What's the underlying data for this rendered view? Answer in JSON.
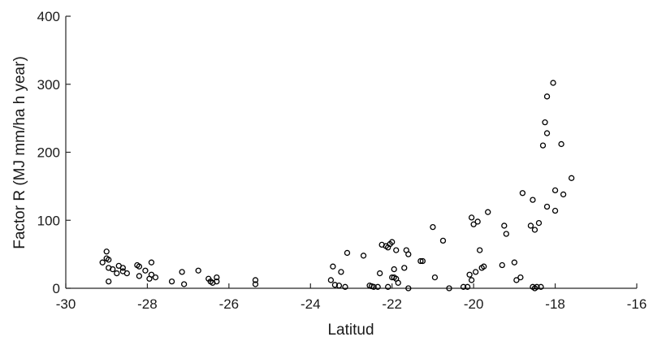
{
  "chart_data": {
    "type": "scatter",
    "xlabel": "Latitud",
    "ylabel": "Factor R (MJ mm/ha h year)",
    "xlim": [
      -30,
      -16
    ],
    "ylim": [
      0,
      400
    ],
    "xticks": [
      "-30",
      "-28",
      "-26",
      "-24",
      "-22",
      "-20",
      "-18",
      "-16"
    ],
    "yticks": [
      "0",
      "100",
      "200",
      "300",
      "400"
    ],
    "grid": false,
    "legend": "none",
    "marker": "open-circle",
    "marker_color": "#000000",
    "points": [
      [
        -29.1,
        38
      ],
      [
        -29.0,
        54
      ],
      [
        -29.0,
        44
      ],
      [
        -28.95,
        42
      ],
      [
        -28.95,
        30
      ],
      [
        -28.95,
        10
      ],
      [
        -28.85,
        28
      ],
      [
        -28.75,
        22
      ],
      [
        -28.7,
        33
      ],
      [
        -28.6,
        30
      ],
      [
        -28.6,
        25
      ],
      [
        -28.5,
        22
      ],
      [
        -28.25,
        34
      ],
      [
        -28.2,
        32
      ],
      [
        -28.2,
        18
      ],
      [
        -28.05,
        26
      ],
      [
        -27.95,
        14
      ],
      [
        -27.9,
        38
      ],
      [
        -27.9,
        20
      ],
      [
        -27.8,
        16
      ],
      [
        -27.4,
        10
      ],
      [
        -27.15,
        24
      ],
      [
        -27.1,
        6
      ],
      [
        -26.75,
        26
      ],
      [
        -26.5,
        14
      ],
      [
        -26.45,
        10
      ],
      [
        -26.4,
        8
      ],
      [
        -26.3,
        16
      ],
      [
        -26.3,
        10
      ],
      [
        -25.35,
        12
      ],
      [
        -25.35,
        6
      ],
      [
        -23.5,
        12
      ],
      [
        -23.45,
        32
      ],
      [
        -23.4,
        5
      ],
      [
        -23.3,
        4
      ],
      [
        -23.25,
        24
      ],
      [
        -23.15,
        2
      ],
      [
        -23.1,
        52
      ],
      [
        -22.7,
        48
      ],
      [
        -22.55,
        4
      ],
      [
        -22.5,
        3
      ],
      [
        -22.45,
        2
      ],
      [
        -22.35,
        2
      ],
      [
        -22.3,
        22
      ],
      [
        -22.25,
        64
      ],
      [
        -22.15,
        62
      ],
      [
        -22.1,
        60
      ],
      [
        -22.05,
        65
      ],
      [
        -22.0,
        68
      ],
      [
        -22.0,
        16
      ],
      [
        -21.95,
        28
      ],
      [
        -21.95,
        16
      ],
      [
        -21.9,
        14
      ],
      [
        -21.9,
        56
      ],
      [
        -21.85,
        8
      ],
      [
        -22.1,
        2
      ],
      [
        -21.7,
        30
      ],
      [
        -21.65,
        56
      ],
      [
        -21.6,
        50
      ],
      [
        -21.6,
        0
      ],
      [
        -21.3,
        40
      ],
      [
        -21.25,
        40
      ],
      [
        -21.0,
        90
      ],
      [
        -20.95,
        16
      ],
      [
        -20.75,
        70
      ],
      [
        -20.6,
        0
      ],
      [
        -20.25,
        2
      ],
      [
        -20.15,
        2
      ],
      [
        -20.1,
        20
      ],
      [
        -20.05,
        104
      ],
      [
        -20.05,
        12
      ],
      [
        -20.0,
        94
      ],
      [
        -19.95,
        24
      ],
      [
        -19.9,
        98
      ],
      [
        -19.85,
        56
      ],
      [
        -19.8,
        30
      ],
      [
        -19.75,
        32
      ],
      [
        -19.65,
        112
      ],
      [
        -19.3,
        34
      ],
      [
        -19.25,
        92
      ],
      [
        -19.2,
        80
      ],
      [
        -19.0,
        38
      ],
      [
        -18.95,
        12
      ],
      [
        -18.85,
        16
      ],
      [
        -18.8,
        140
      ],
      [
        -18.6,
        92
      ],
      [
        -18.55,
        130
      ],
      [
        -18.55,
        2
      ],
      [
        -18.5,
        86
      ],
      [
        -18.5,
        0
      ],
      [
        -18.45,
        2
      ],
      [
        -18.4,
        96
      ],
      [
        -18.35,
        2
      ],
      [
        -18.3,
        210
      ],
      [
        -18.25,
        244
      ],
      [
        -18.2,
        282
      ],
      [
        -18.2,
        228
      ],
      [
        -18.2,
        120
      ],
      [
        -18.05,
        302
      ],
      [
        -18.0,
        144
      ],
      [
        -18.0,
        114
      ],
      [
        -17.85,
        212
      ],
      [
        -17.8,
        138
      ],
      [
        -17.6,
        162
      ]
    ]
  }
}
